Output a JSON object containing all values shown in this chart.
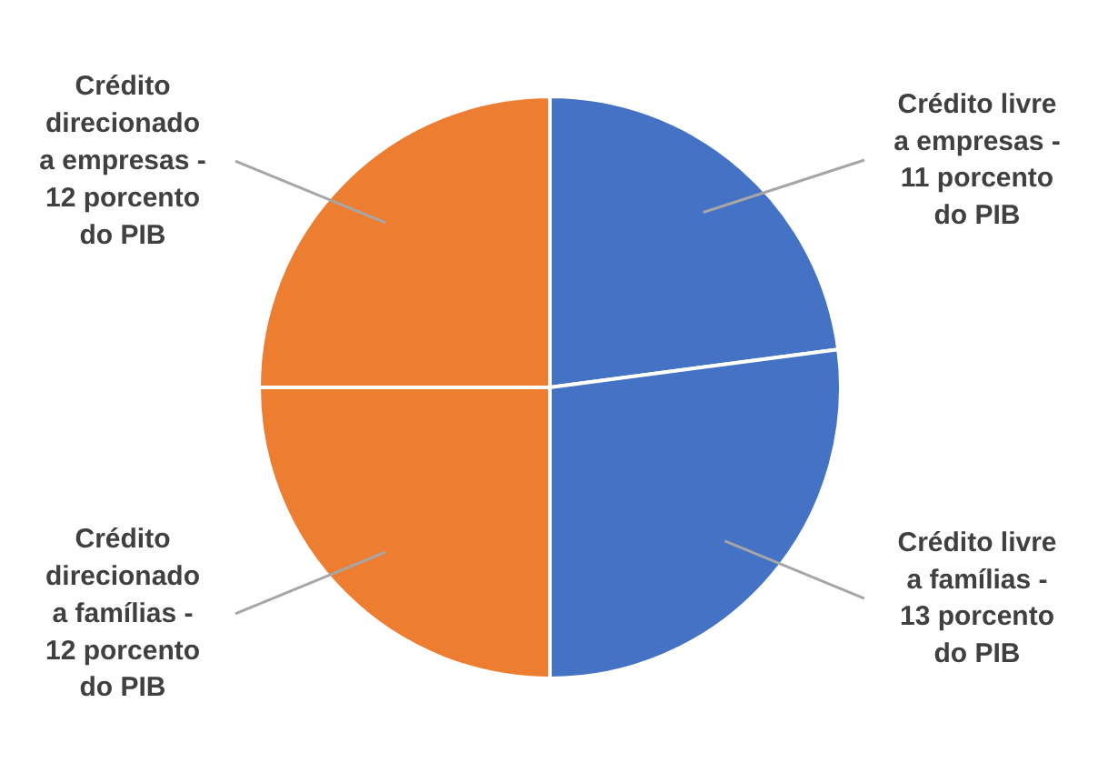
{
  "chart_data": {
    "type": "pie",
    "categories": [
      "Crédito livre\na empresas -\n11 porcento\ndo PIB",
      "Crédito livre\na famílias -\n13 porcento\ndo PIB",
      "Crédito\ndirecionado\na famílias -\n12 porcento\ndo PIB",
      "Crédito\ndirecionado\na empresas -\n12 porcento\ndo PIB"
    ],
    "values": [
      11,
      13,
      12,
      12
    ],
    "colors": [
      "#4472c4",
      "#4472c4",
      "#ed7d31",
      "#ed7d31"
    ]
  }
}
